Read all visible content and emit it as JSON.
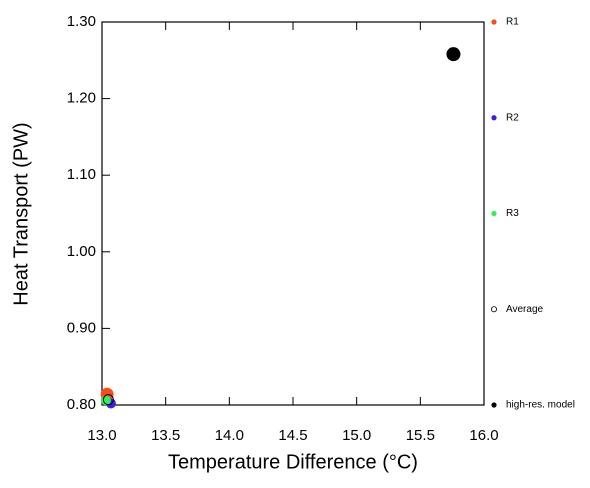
{
  "chart_data": {
    "type": "scatter",
    "x_label": "Temperature Difference (°C)",
    "y_label": "Heat Transport (PW)",
    "xlim": [
      13.0,
      16.0
    ],
    "ylim": [
      0.8,
      1.3
    ],
    "xticks": [
      {
        "value": 13.0,
        "label": "13.0"
      },
      {
        "value": 13.5,
        "label": "13.5"
      },
      {
        "value": 14.0,
        "label": "14.0"
      },
      {
        "value": 14.5,
        "label": "14.5"
      },
      {
        "value": 15.0,
        "label": "15.0"
      },
      {
        "value": 15.5,
        "label": "15.5"
      },
      {
        "value": 16.0,
        "label": "16.0"
      }
    ],
    "yticks": [
      {
        "value": 0.8,
        "label": "0.80"
      },
      {
        "value": 0.9,
        "label": "0.90"
      },
      {
        "value": 1.0,
        "label": "1.00"
      },
      {
        "value": 1.1,
        "label": "1.10"
      },
      {
        "value": 1.2,
        "label": "1.20"
      },
      {
        "value": 1.3,
        "label": "1.30"
      }
    ],
    "legend": "right",
    "series": [
      {
        "name": "R1",
        "color": "#ff4a1c",
        "hollow": false,
        "x": [
          13.04
        ],
        "y": [
          0.814
        ]
      },
      {
        "name": "R2",
        "color": "#3a1ee6",
        "hollow": false,
        "x": [
          13.07
        ],
        "y": [
          0.802
        ]
      },
      {
        "name": "R3",
        "color": "#33ee55",
        "hollow": false,
        "x": [
          13.03
        ],
        "y": [
          0.806
        ]
      },
      {
        "name": "Average",
        "color": "#000000",
        "hollow": true,
        "x": [
          13.05
        ],
        "y": [
          0.807
        ]
      },
      {
        "name": "high-res. model",
        "color": "#000000",
        "hollow": false,
        "x": [
          15.76
        ],
        "y": [
          1.258
        ]
      }
    ]
  }
}
